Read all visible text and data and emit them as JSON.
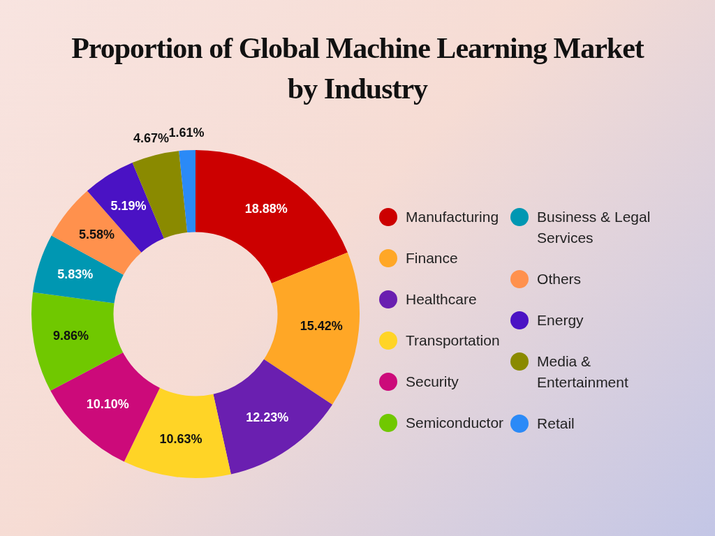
{
  "chart_data": {
    "type": "donut",
    "title": "Proportion of Global Machine Learning Market by Industry",
    "categories": [
      "Manufacturing",
      "Finance",
      "Healthcare",
      "Transportation",
      "Security",
      "Semiconductor",
      "Business & Legal Services",
      "Others",
      "Energy",
      "Media & Entertainment",
      "Retail"
    ],
    "values": [
      18.88,
      15.42,
      12.23,
      10.63,
      10.1,
      9.86,
      5.83,
      5.58,
      5.19,
      4.67,
      1.61
    ],
    "value_labels": [
      "18.88%",
      "15.42%",
      "12.23%",
      "10.63%",
      "10.10%",
      "9.86%",
      "5.83%",
      "5.58%",
      "5.19%",
      "4.67%",
      "1.61%"
    ],
    "colors": [
      "#cc0000",
      "#ffa726",
      "#6a1fb0",
      "#ffd426",
      "#cc0a7a",
      "#70c800",
      "#0097b2",
      "#ff914d",
      "#4a12c4",
      "#8a8a00",
      "#2b8af7"
    ],
    "legend": "right"
  }
}
